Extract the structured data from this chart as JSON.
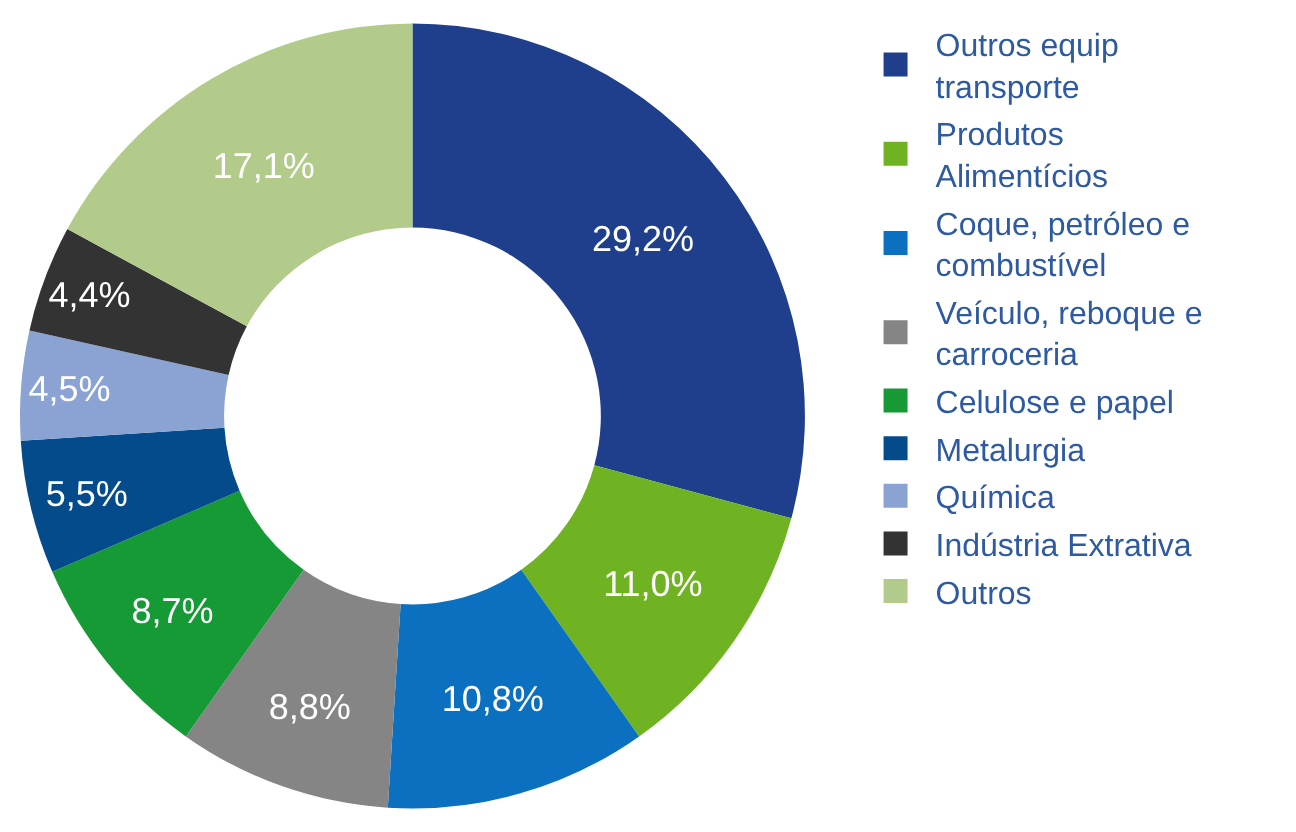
{
  "chart_data": {
    "type": "donut",
    "categories": [
      "Outros equip transporte",
      "Produtos Alimentícios",
      "Coque, petróleo e combustível",
      "Veículo, reboque e carroceria",
      "Celulose e papel",
      "Metalurgia",
      "Química",
      "Indústria Extrativa",
      "Outros"
    ],
    "values": [
      29.2,
      11.0,
      10.8,
      8.8,
      8.7,
      5.5,
      4.5,
      4.4,
      17.1
    ],
    "value_labels": [
      "29,2%",
      "11,0%",
      "10,8%",
      "8,8%",
      "8,7%",
      "5,5%",
      "4,5%",
      "4,4%",
      "17,1%"
    ],
    "colors": [
      "#1f3f8c",
      "#6fb322",
      "#0a70bf",
      "#858585",
      "#159a35",
      "#034b8a",
      "#8aa3d3",
      "#333333",
      "#b3cb8a"
    ],
    "legend": "right"
  }
}
